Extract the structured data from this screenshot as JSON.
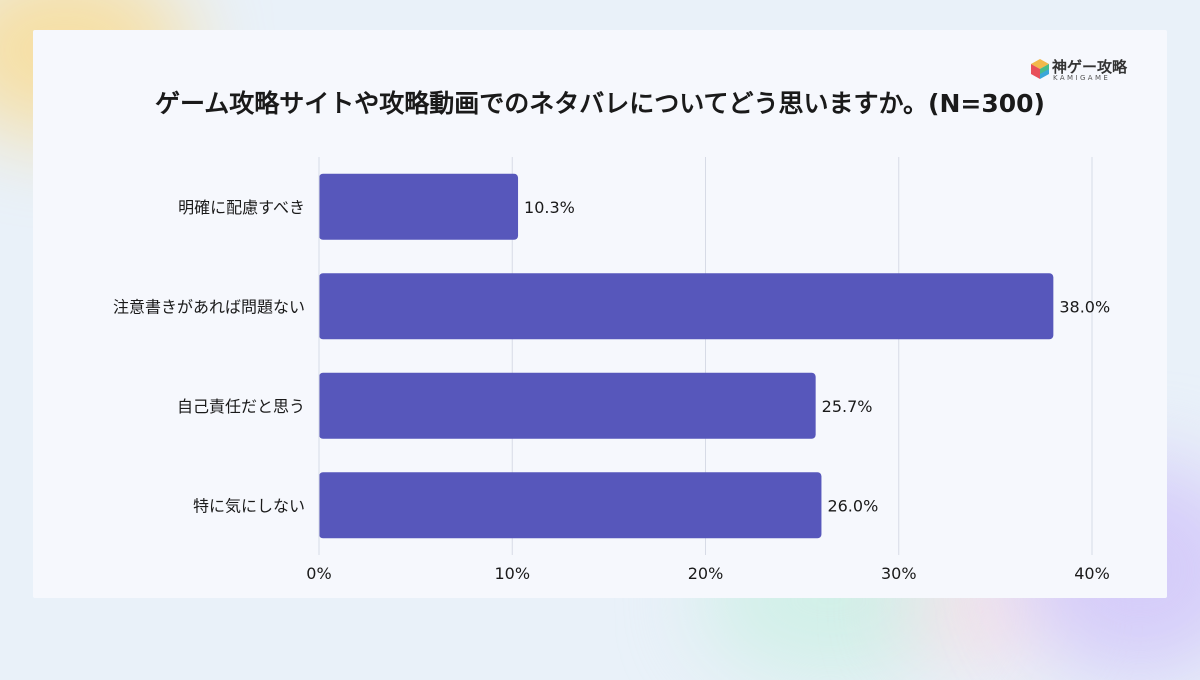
{
  "title": "ゲーム攻略サイトや攻略動画でのネタバレについてどう思いますか。(N=300)",
  "logo": {
    "main": "神ゲー攻略",
    "sub": "KAMIGAME"
  },
  "colors": {
    "bar": "#5757bb",
    "grid": "#d7dbe6",
    "text": "#1a1a1a"
  },
  "chart_data": {
    "type": "bar",
    "orientation": "horizontal",
    "title": "ゲーム攻略サイトや攻略動画でのネタバレについてどう思いますか。(N=300)",
    "categories": [
      "明確に配慮すべき",
      "注意書きがあれば問題ない",
      "自己責任だと思う",
      "特に気にしない"
    ],
    "values": [
      10.3,
      38.0,
      25.7,
      26.0
    ],
    "value_labels": [
      "10.3%",
      "38.0%",
      "25.7%",
      "26.0%"
    ],
    "xlim": [
      0,
      40
    ],
    "x_ticks": [
      0,
      10,
      20,
      30,
      40
    ],
    "x_tick_labels": [
      "0%",
      "10%",
      "20%",
      "30%",
      "40%"
    ],
    "grid": true,
    "legend": "none"
  }
}
